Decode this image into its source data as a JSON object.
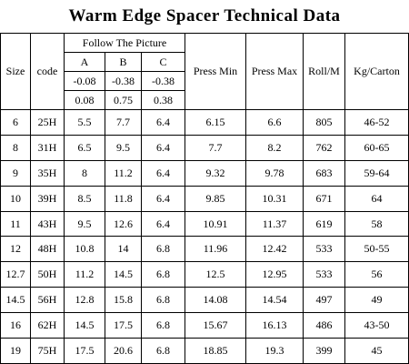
{
  "title": "Warm Edge Spacer Technical Data",
  "table": {
    "header": {
      "size": "Size",
      "code": "code",
      "group": "Follow The Picture",
      "columns": [
        "A",
        "B",
        "C"
      ],
      "minus": [
        "-0.08",
        "-0.38",
        "-0.38"
      ],
      "plus": [
        "0.08",
        "0.75",
        "0.38"
      ],
      "press_min": "Press Min",
      "press_max": "Press Max",
      "roll": "Roll/M",
      "kg": "Kg/Carton"
    },
    "rows": [
      [
        "6",
        "25H",
        "5.5",
        "7.7",
        "6.4",
        "6.15",
        "6.6",
        "805",
        "46-52"
      ],
      [
        "8",
        "31H",
        "6.5",
        "9.5",
        "6.4",
        "7.7",
        "8.2",
        "762",
        "60-65"
      ],
      [
        "9",
        "35H",
        "8",
        "11.2",
        "6.4",
        "9.32",
        "9.78",
        "683",
        "59-64"
      ],
      [
        "10",
        "39H",
        "8.5",
        "11.8",
        "6.4",
        "9.85",
        "10.31",
        "671",
        "64"
      ],
      [
        "11",
        "43H",
        "9.5",
        "12.6",
        "6.4",
        "10.91",
        "11.37",
        "619",
        "58"
      ],
      [
        "12",
        "48H",
        "10.8",
        "14",
        "6.8",
        "11.96",
        "12.42",
        "533",
        "50-55"
      ],
      [
        "12.7",
        "50H",
        "11.2",
        "14.5",
        "6.8",
        "12.5",
        "12.95",
        "533",
        "56"
      ],
      [
        "14.5",
        "56H",
        "12.8",
        "15.8",
        "6.8",
        "14.08",
        "14.54",
        "497",
        "49"
      ],
      [
        "16",
        "62H",
        "14.5",
        "17.5",
        "6.8",
        "15.67",
        "16.13",
        "486",
        "43-50"
      ],
      [
        "19",
        "75H",
        "17.5",
        "20.6",
        "6.8",
        "18.85",
        "19.3",
        "399",
        "45"
      ]
    ]
  }
}
